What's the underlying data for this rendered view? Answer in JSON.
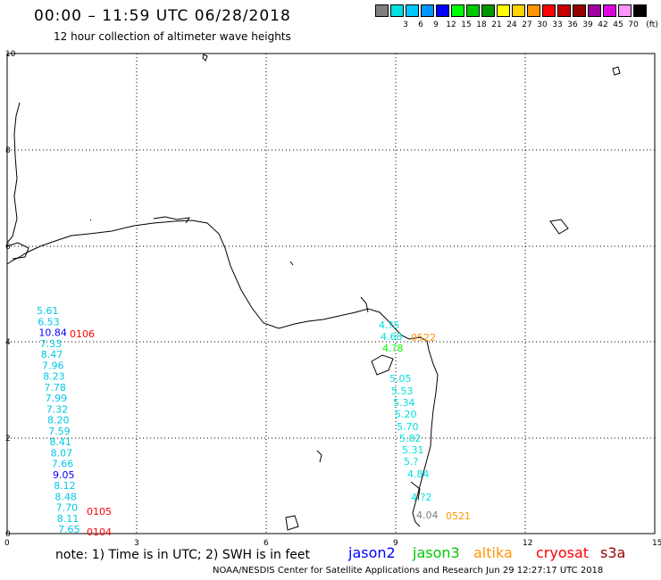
{
  "header": {
    "title": "00:00 – 11:59 UTC 06/28/2018",
    "subtitle": "12 hour collection of altimeter wave heights"
  },
  "legend": {
    "unit": "(ft)",
    "items": [
      {
        "label": "",
        "color": "#808080"
      },
      {
        "label": "3",
        "color": "#00e0e0"
      },
      {
        "label": "6",
        "color": "#00c8ff"
      },
      {
        "label": "9",
        "color": "#0096ff"
      },
      {
        "label": "12",
        "color": "#0000ff"
      },
      {
        "label": "15",
        "color": "#00ff00"
      },
      {
        "label": "18",
        "color": "#00c800"
      },
      {
        "label": "21",
        "color": "#009600"
      },
      {
        "label": "24",
        "color": "#ffff00"
      },
      {
        "label": "27",
        "color": "#ffd200"
      },
      {
        "label": "30",
        "color": "#ff9600"
      },
      {
        "label": "33",
        "color": "#ff0000"
      },
      {
        "label": "36",
        "color": "#c80000"
      },
      {
        "label": "39",
        "color": "#960000"
      },
      {
        "label": "42",
        "color": "#a000a0"
      },
      {
        "label": "45",
        "color": "#e000e0"
      },
      {
        "label": "70",
        "color": "#ff96ff"
      },
      {
        "label": "",
        "color": "#000000"
      }
    ]
  },
  "axes": {
    "x_ticks": [
      "0",
      "3",
      "6",
      "9",
      "12",
      "15"
    ],
    "y_ticks": [
      "10",
      "8",
      "6",
      "4",
      "2",
      "0"
    ]
  },
  "tracks": {
    "left": [
      {
        "v": "5.61",
        "c": "#00c8e8"
      },
      {
        "v": "6.53",
        "c": "#00c8e8"
      },
      {
        "v": "10.84",
        "c": "#0000ff"
      },
      {
        "v": "7.33",
        "c": "#00c8e8"
      },
      {
        "v": "8.47",
        "c": "#00c8e8"
      },
      {
        "v": "7.96",
        "c": "#00c8e8"
      },
      {
        "v": "8.23",
        "c": "#00c8e8"
      },
      {
        "v": "7.78",
        "c": "#00c8e8"
      },
      {
        "v": "7.99",
        "c": "#00c8e8"
      },
      {
        "v": "7.32",
        "c": "#00c8e8"
      },
      {
        "v": "8.20",
        "c": "#00c8e8"
      },
      {
        "v": "7.59",
        "c": "#00c8e8"
      },
      {
        "v": "8.41",
        "c": "#00c8e8"
      },
      {
        "v": "8.07",
        "c": "#00c8e8"
      },
      {
        "v": "7.66",
        "c": "#00c8e8"
      },
      {
        "v": "9.05",
        "c": "#0000ff"
      },
      {
        "v": "8.12",
        "c": "#00c8e8"
      },
      {
        "v": "8.48",
        "c": "#00c8e8"
      },
      {
        "v": "7.70",
        "c": "#00c8e8"
      },
      {
        "v": "8.11",
        "c": "#00c8e8"
      },
      {
        "v": "7.65",
        "c": "#00c8e8"
      }
    ],
    "right": [
      {
        "v": "4.?5",
        "c": "#00e0e0"
      },
      {
        "v": "4.68",
        "c": "#00e0e0"
      },
      {
        "v": "4.?8",
        "c": "#00ff00"
      },
      {
        "v": "5.05",
        "c": "#00e0e0"
      },
      {
        "v": "5.53",
        "c": "#00e0e0"
      },
      {
        "v": "5.34",
        "c": "#00e0e0"
      },
      {
        "v": "5.20",
        "c": "#00e0e0"
      },
      {
        "v": "5.70",
        "c": "#00e0e0"
      },
      {
        "v": "5.82",
        "c": "#00e0e0"
      },
      {
        "v": "5.31",
        "c": "#00e0e0"
      },
      {
        "v": "5.?",
        "c": "#00e0e0"
      },
      {
        "v": "4.84",
        "c": "#00e0e0"
      },
      {
        "v": "4.?2",
        "c": "#00e0e0"
      },
      {
        "v": "4.04",
        "c": "#808080"
      }
    ],
    "times": [
      {
        "t": "0106",
        "c": "#ff0000"
      },
      {
        "t": "0105",
        "c": "#ff0000"
      },
      {
        "t": "0104",
        "c": "#ff0000"
      },
      {
        "t": "0522",
        "c": "#ff9600"
      },
      {
        "t": "0521",
        "c": "#ff9600"
      }
    ]
  },
  "note": "note: 1) Time is in UTC; 2) SWH is in feet",
  "satellites": [
    {
      "name": "jason2",
      "color": "#0000ff"
    },
    {
      "name": "jason3",
      "color": "#00c800"
    },
    {
      "name": "altika",
      "color": "#ff9600"
    },
    {
      "name": "cryosat",
      "color": "#ff0000"
    },
    {
      "name": "s3a",
      "color": "#960000"
    }
  ],
  "footer": "NOAA/NESDIS Center for Satellite Applications and Research     Jun 29 12:27:17 UTC 2018"
}
